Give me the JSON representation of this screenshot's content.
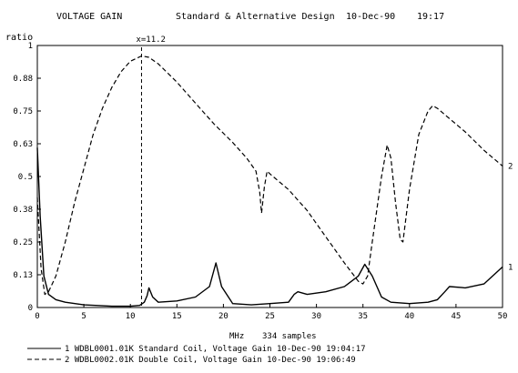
{
  "header": {
    "title": "VOLTAGE GAIN",
    "subtitle": "Standard & Alternative Design",
    "date": "10-Dec-90",
    "time": "19:17"
  },
  "chart_data": {
    "type": "line",
    "ylabel": "ratio",
    "xlabel": "MHz",
    "samples_note": "334 samples",
    "xlim": [
      0,
      50
    ],
    "ylim": [
      0,
      1
    ],
    "x_ticks": [
      0,
      5,
      10,
      15,
      20,
      25,
      30,
      35,
      40,
      45,
      50
    ],
    "y_ticks": [
      {
        "value": 0,
        "label": "0"
      },
      {
        "value": 0.125,
        "label": "0.13"
      },
      {
        "value": 0.25,
        "label": "0.25"
      },
      {
        "value": 0.375,
        "label": "0.38"
      },
      {
        "value": 0.5,
        "label": "0.5"
      },
      {
        "value": 0.625,
        "label": "0.63"
      },
      {
        "value": 0.75,
        "label": "0.75"
      },
      {
        "value": 0.875,
        "label": "0.88"
      },
      {
        "value": 1,
        "label": "1"
      }
    ],
    "grid": false,
    "marker": {
      "x": 11.2,
      "label": "x=11.2"
    },
    "series": [
      {
        "id": "1",
        "end_label": "1",
        "style": "solid",
        "legend": "1 WDBL0001.01K Standard Coil, Voltage Gain 10-Dec-90 19:04:17",
        "x": [
          0,
          0.3,
          0.7,
          1.2,
          2,
          3,
          5,
          8,
          10,
          11,
          11.5,
          11.8,
          12,
          12.4,
          13,
          15,
          17,
          18.5,
          19.2,
          19.8,
          21,
          23,
          25,
          27,
          27.6,
          28,
          29,
          31,
          33,
          34.5,
          35.2,
          36,
          37,
          38,
          40,
          42,
          43,
          43.8,
          44.3,
          46,
          48,
          50
        ],
        "y": [
          0.61,
          0.35,
          0.12,
          0.05,
          0.03,
          0.02,
          0.01,
          0.005,
          0.005,
          0.008,
          0.02,
          0.045,
          0.075,
          0.04,
          0.02,
          0.025,
          0.04,
          0.08,
          0.17,
          0.08,
          0.015,
          0.01,
          0.015,
          0.02,
          0.05,
          0.06,
          0.05,
          0.06,
          0.08,
          0.12,
          0.165,
          0.12,
          0.04,
          0.02,
          0.015,
          0.02,
          0.03,
          0.06,
          0.08,
          0.075,
          0.09,
          0.155
        ]
      },
      {
        "id": "2",
        "end_label": "2",
        "style": "dashed",
        "legend": "2 WDBL0002.01K Double Coil, Voltage Gain 10-Dec-90 19:06:49",
        "x": [
          0,
          0.4,
          0.8,
          1.2,
          2,
          3,
          4,
          5,
          6,
          7,
          8,
          9,
          10,
          11.2,
          12,
          13,
          15,
          17,
          19,
          21,
          22.5,
          23.5,
          23.9,
          24.1,
          24.4,
          24.7,
          25,
          27,
          29,
          31,
          33,
          34.5,
          35,
          35.5,
          36,
          37,
          37.6,
          38,
          38.5,
          39,
          39.3,
          40,
          41,
          42,
          42.5,
          43,
          44,
          46,
          48,
          50
        ],
        "y": [
          0.42,
          0.15,
          0.05,
          0.06,
          0.12,
          0.25,
          0.4,
          0.53,
          0.66,
          0.76,
          0.84,
          0.9,
          0.94,
          0.96,
          0.955,
          0.93,
          0.86,
          0.78,
          0.7,
          0.63,
          0.57,
          0.52,
          0.44,
          0.36,
          0.46,
          0.52,
          0.51,
          0.45,
          0.37,
          0.27,
          0.17,
          0.1,
          0.09,
          0.12,
          0.25,
          0.5,
          0.62,
          0.57,
          0.4,
          0.26,
          0.25,
          0.45,
          0.66,
          0.75,
          0.77,
          0.76,
          0.73,
          0.67,
          0.6,
          0.54
        ]
      }
    ]
  }
}
